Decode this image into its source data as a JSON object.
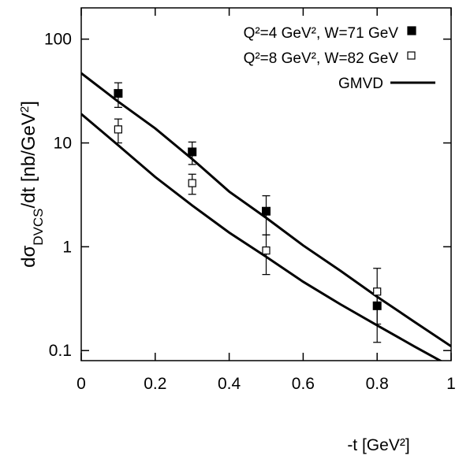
{
  "chart_data": {
    "type": "scatter",
    "x_label": "-t [GeV²]",
    "y_label": [
      "dσ",
      "DVCS",
      "/dt [nb/GeV",
      "2",
      "]"
    ],
    "xlim": [
      0,
      1
    ],
    "ylim": [
      0.08,
      200
    ],
    "xticks": [
      0,
      0.2,
      0.4,
      0.6,
      0.8,
      1
    ],
    "yticks": [
      0.1,
      1,
      10,
      100
    ],
    "log_y": true,
    "legend": "upper right",
    "series": [
      {
        "name": "Q²=4 GeV², W=71 GeV",
        "marker": "filled-square",
        "color": "#000000",
        "x": [
          0.1,
          0.3,
          0.5,
          0.8
        ],
        "values": [
          30,
          8.2,
          2.2,
          0.27
        ],
        "errors": [
          8,
          2,
          0.9,
          0.09
        ]
      },
      {
        "name": "Q²=8 GeV², W=82 GeV",
        "marker": "open-square",
        "color": "#000000",
        "x": [
          0.1,
          0.3,
          0.5,
          0.8
        ],
        "values": [
          13.5,
          4.1,
          0.92,
          0.37
        ],
        "errors": [
          3.5,
          0.9,
          0.38,
          0.25
        ]
      }
    ],
    "curves": {
      "name": "GMVD",
      "color": "#000000",
      "x": [
        0,
        0.1,
        0.2,
        0.3,
        0.4,
        0.5,
        0.6,
        0.7,
        0.8,
        0.9,
        1
      ],
      "lines": [
        [
          47,
          25,
          13.8,
          7,
          3.4,
          1.9,
          1.03,
          0.59,
          0.33,
          0.19,
          0.11
        ],
        [
          19,
          9.5,
          4.7,
          2.5,
          1.37,
          0.8,
          0.46,
          0.28,
          0.175,
          0.11,
          0.07
        ]
      ]
    }
  }
}
